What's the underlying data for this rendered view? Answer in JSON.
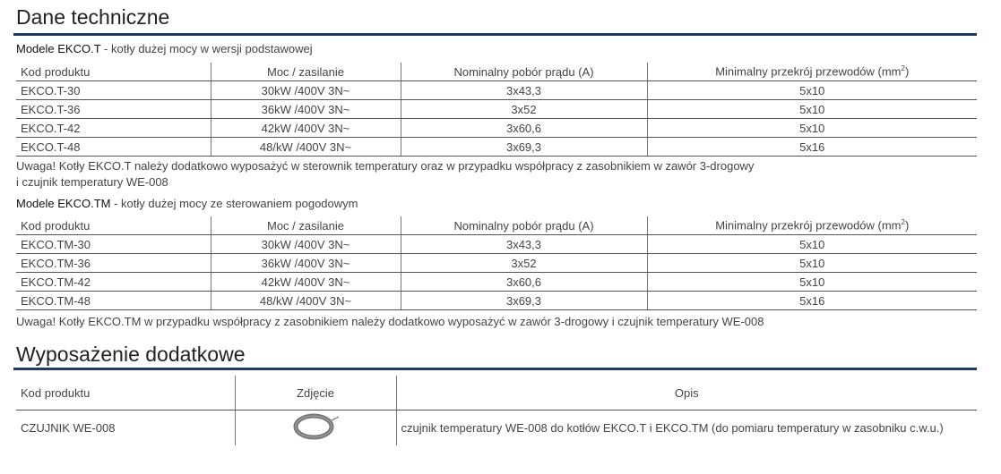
{
  "section1": {
    "title": "Dane techniczne"
  },
  "table1": {
    "subtitle_bold": "Modele EKCO.T",
    "subtitle_rest": " - kotły dużej mocy w wersji podstawowej",
    "headers": [
      "Kod produktu",
      "Moc / zasilanie",
      "Nominalny pobór prądu (A)",
      "Minimalny przekrój przewodów (mm",
      "2",
      ")"
    ],
    "rows": [
      [
        "EKCO.T-30",
        "30kW /400V 3N~",
        "3x43,3",
        "5x10"
      ],
      [
        "EKCO.T-36",
        "36kW /400V 3N~",
        "3x52",
        "5x10"
      ],
      [
        "EKCO.T-42",
        "42kW /400V 3N~",
        "3x60,6",
        "5x10"
      ],
      [
        "EKCO.T-48",
        "48/kW /400V 3N~",
        "3x69,3",
        "5x16"
      ]
    ],
    "note_line1": "Uwaga! Kotły EKCO.T należy dodatkowo wyposażyć w sterownik temperatury oraz w przypadku współpracy z zasobnikiem w zawór 3-drogowy",
    "note_line2": "i czujnik temperatury WE-008"
  },
  "table2": {
    "subtitle_bold": "Modele EKCO.TM",
    "subtitle_rest": " - kotły dużej mocy ze sterowaniem pogodowym",
    "rows": [
      [
        "EKCO.TM-30",
        "30kW /400V 3N~",
        "3x43,3",
        "5x10"
      ],
      [
        "EKCO.TM-36",
        "36kW /400V 3N~",
        "3x52",
        "5x10"
      ],
      [
        "EKCO.TM-42",
        "42kW /400V 3N~",
        "3x60,6",
        "5x10"
      ],
      [
        "EKCO.TM-48",
        "48/kW /400V 3N~",
        "3x69,3",
        "5x16"
      ]
    ],
    "note": "Uwaga! Kotły EKCO.TM w przypadku współpracy z zasobnikiem należy dodatkowo wyposażyć w zawór 3-drogowy i czujnik temperatury WE-008"
  },
  "section2": {
    "title": "Wyposażenie dodatkowe"
  },
  "table3": {
    "headers": [
      "Kod produktu",
      "Zdjęcie",
      "Opis"
    ],
    "rows": [
      [
        "CZUJNIK WE-008",
        "czujnik temperatury WE-008 do kotłów EKCO.T i EKCO.TM (do pomiaru temperatury w zasobniku c.w.u.)"
      ]
    ],
    "image": "coiled-sensor-cable"
  },
  "colors": {
    "rule": "#1f3a68"
  }
}
